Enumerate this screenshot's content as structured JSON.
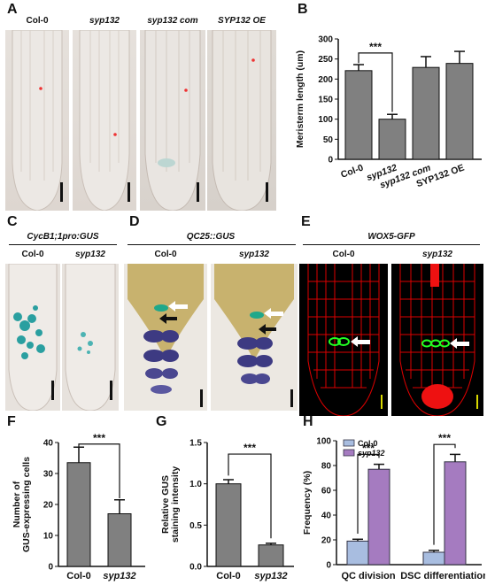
{
  "panels": {
    "a": {
      "letter": "A",
      "labels": [
        "Col-0",
        "syp132",
        "syp132 com",
        "SYP132 OE"
      ]
    },
    "b": {
      "letter": "B"
    },
    "c": {
      "letter": "C",
      "title": "CycB1;1pro:GUS",
      "labels": [
        "Col-0",
        "syp132"
      ]
    },
    "d": {
      "letter": "D",
      "title": "QC25::GUS",
      "labels": [
        "Col-0",
        "syp132"
      ]
    },
    "e": {
      "letter": "E",
      "title": "WOX5-GFP",
      "labels": [
        "Col-0",
        "syp132"
      ]
    },
    "f": {
      "letter": "F"
    },
    "g": {
      "letter": "G"
    },
    "h": {
      "letter": "H"
    }
  },
  "colors": {
    "bar_gray": "#808080",
    "wt_blue": "#a8bde0",
    "mut_purple": "#a57bc0",
    "gus_blue": "#2a9fa0",
    "scale_yellow": "#d8d800"
  },
  "chart_data": [
    {
      "panel": "B",
      "type": "bar",
      "categories": [
        "Col-0",
        "syp132",
        "syp132 com",
        "SYP132 OE"
      ],
      "values": [
        221,
        100,
        229,
        239
      ],
      "errors": [
        15,
        12,
        27,
        30
      ],
      "ylabel": "Meristerm length (um)",
      "ylim": [
        0,
        300
      ],
      "yticks": [
        0,
        50,
        100,
        150,
        200,
        250,
        300
      ],
      "significance": "***"
    },
    {
      "panel": "F",
      "type": "bar",
      "categories": [
        "Col-0",
        "syp132"
      ],
      "values": [
        33.5,
        17
      ],
      "errors": [
        5,
        4.5
      ],
      "ylabel": "Number of GUS-expressing cells",
      "ylim": [
        0,
        40
      ],
      "yticks": [
        0,
        10,
        20,
        30,
        40
      ],
      "significance": "***"
    },
    {
      "panel": "G",
      "type": "bar",
      "categories": [
        "Col-0",
        "syp132"
      ],
      "values": [
        1.0,
        0.26
      ],
      "errors": [
        0.05,
        0.02
      ],
      "ylabel": "Relative GUS staining intensity",
      "ylim": [
        0,
        1.5
      ],
      "yticks": [
        "0.0",
        "0.5",
        "1.0",
        "1.5"
      ],
      "significance": "***"
    },
    {
      "panel": "H",
      "type": "bar",
      "categories": [
        "QC division",
        "DSC differentiation"
      ],
      "series": [
        {
          "name": "Col-0",
          "values": [
            19,
            10
          ],
          "errors": [
            1.5,
            1.5
          ]
        },
        {
          "name": "syp132",
          "values": [
            77,
            83
          ],
          "errors": [
            4,
            6
          ]
        }
      ],
      "ylabel": "Frequency (%)",
      "ylim": [
        0,
        100
      ],
      "yticks": [
        0,
        20,
        40,
        60,
        80,
        100
      ],
      "significance": "***"
    }
  ]
}
